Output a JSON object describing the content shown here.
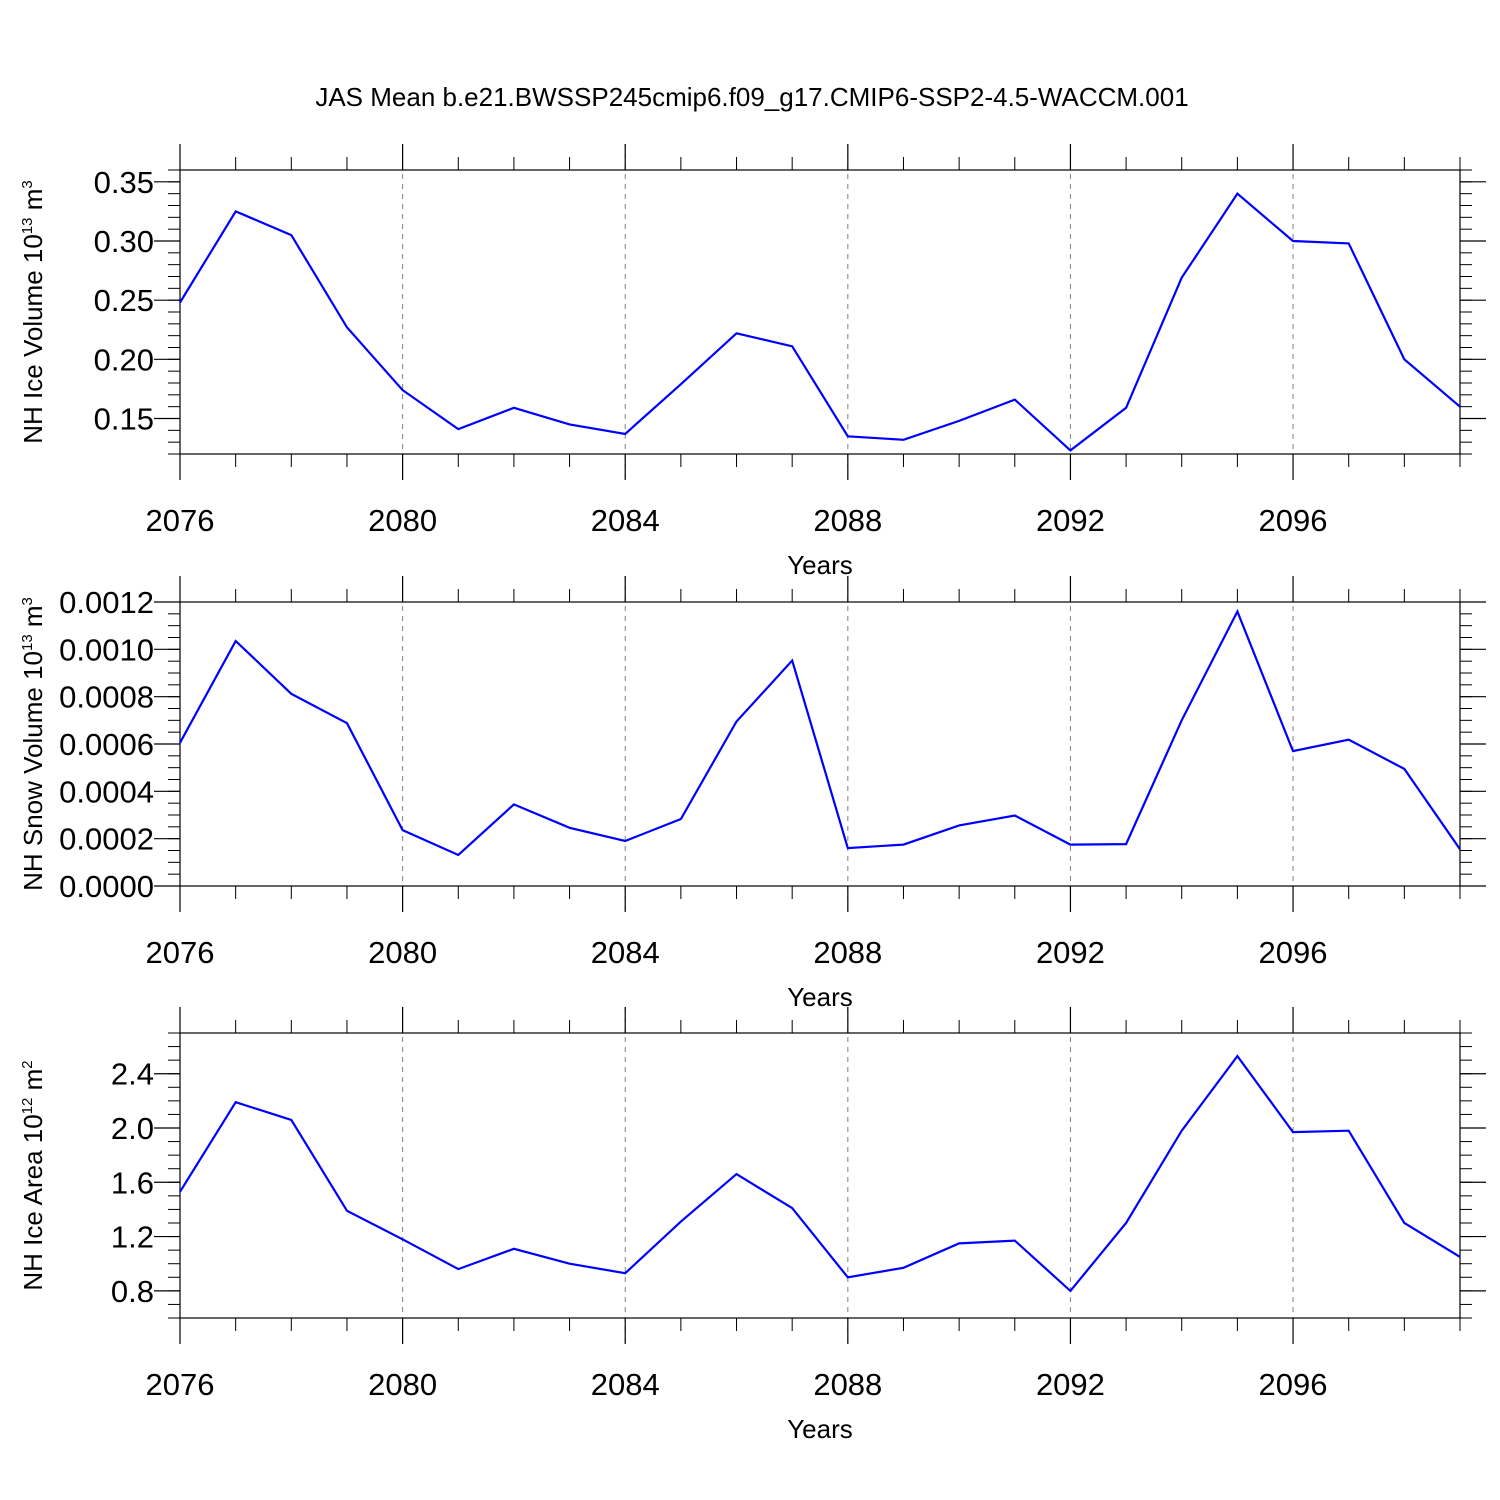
{
  "title": "JAS Mean b.e21.BWSSP245cmip6.f09_g17.CMIP6-SSP2-4.5-WACCM.001",
  "colors": {
    "line": "#0000ff",
    "grid": "#808080",
    "axis": "#000000"
  },
  "chart_data": [
    {
      "type": "line",
      "ylabel": "NH Ice Volume 10",
      "ylabel_sup": "13",
      "ylabel_unit": " m",
      "ylabel_unit_sup": "3",
      "xlabel": "Years",
      "xlim": [
        2076,
        2099
      ],
      "ylim": [
        0.12,
        0.36
      ],
      "yticks": [
        0.15,
        0.2,
        0.25,
        0.3,
        0.35
      ],
      "yticklabels": [
        "0.15",
        "0.20",
        "0.25",
        "0.30",
        "0.35"
      ],
      "yminor": 0.01,
      "xticks": [
        2076,
        2080,
        2084,
        2088,
        2092,
        2096
      ],
      "xticklabels": [
        "2076",
        "2080",
        "2084",
        "2088",
        "2092",
        "2096"
      ],
      "gridlines_x": [
        2080,
        2084,
        2088,
        2092,
        2096
      ],
      "series": [
        {
          "name": "NH Ice Volume",
          "x": [
            2076,
            2077,
            2078,
            2079,
            2080,
            2081,
            2082,
            2083,
            2084,
            2085,
            2086,
            2087,
            2088,
            2089,
            2090,
            2091,
            2092,
            2093,
            2094,
            2095,
            2096,
            2097,
            2098,
            2099
          ],
          "values": [
            0.248,
            0.325,
            0.305,
            0.227,
            0.174,
            0.141,
            0.159,
            0.145,
            0.137,
            0.179,
            0.222,
            0.211,
            0.135,
            0.132,
            0.148,
            0.166,
            0.123,
            0.159,
            0.269,
            0.34,
            0.3,
            0.298,
            0.2,
            0.16
          ]
        }
      ]
    },
    {
      "type": "line",
      "ylabel": "NH Snow Volume 10",
      "ylabel_sup": "13",
      "ylabel_unit": " m",
      "ylabel_unit_sup": "3",
      "xlabel": "Years",
      "xlim": [
        2076,
        2099
      ],
      "ylim": [
        0.0,
        0.0012
      ],
      "yticks": [
        0.0,
        0.0002,
        0.0004,
        0.0006,
        0.0008,
        0.001,
        0.0012
      ],
      "yticklabels": [
        "0.0000",
        "0.0002",
        "0.0004",
        "0.0006",
        "0.0008",
        "0.0010",
        "0.0012"
      ],
      "yminor": 5e-05,
      "xticks": [
        2076,
        2080,
        2084,
        2088,
        2092,
        2096
      ],
      "xticklabels": [
        "2076",
        "2080",
        "2084",
        "2088",
        "2092",
        "2096"
      ],
      "gridlines_x": [
        2080,
        2084,
        2088,
        2092,
        2096
      ],
      "series": [
        {
          "name": "NH Snow Volume",
          "x": [
            2076,
            2077,
            2078,
            2079,
            2080,
            2081,
            2082,
            2083,
            2084,
            2085,
            2086,
            2087,
            2088,
            2089,
            2090,
            2091,
            2092,
            2093,
            2094,
            2095,
            2096,
            2097,
            2098,
            2099
          ],
          "values": [
            0.000605,
            0.001035,
            0.000812,
            0.000688,
            0.000236,
            0.000131,
            0.000345,
            0.000246,
            0.00019,
            0.000283,
            0.000695,
            0.000953,
            0.00016,
            0.000175,
            0.000256,
            0.000298,
            0.000175,
            0.000177,
            0.0007,
            0.00116,
            0.00057,
            0.000618,
            0.000495,
            0.000155
          ]
        }
      ]
    },
    {
      "type": "line",
      "ylabel": "NH Ice Area 10",
      "ylabel_sup": "12",
      "ylabel_unit": " m",
      "ylabel_unit_sup": "2",
      "xlabel": "Years",
      "xlim": [
        2076,
        2099
      ],
      "ylim": [
        0.6,
        2.7
      ],
      "yticks": [
        0.8,
        1.2,
        1.6,
        2.0,
        2.4
      ],
      "yticklabels": [
        "0.8",
        "1.2",
        "1.6",
        "2.0",
        "2.4"
      ],
      "yminor": 0.1,
      "xticks": [
        2076,
        2080,
        2084,
        2088,
        2092,
        2096
      ],
      "xticklabels": [
        "2076",
        "2080",
        "2084",
        "2088",
        "2092",
        "2096"
      ],
      "gridlines_x": [
        2080,
        2084,
        2088,
        2092,
        2096
      ],
      "series": [
        {
          "name": "NH Ice Area",
          "x": [
            2076,
            2077,
            2078,
            2079,
            2080,
            2081,
            2082,
            2083,
            2084,
            2085,
            2086,
            2087,
            2088,
            2089,
            2090,
            2091,
            2092,
            2093,
            2094,
            2095,
            2096,
            2097,
            2098,
            2099
          ],
          "values": [
            1.53,
            2.19,
            2.06,
            1.39,
            1.18,
            0.96,
            1.11,
            1.0,
            0.93,
            1.31,
            1.66,
            1.41,
            0.9,
            0.97,
            1.15,
            1.17,
            0.8,
            1.3,
            1.98,
            2.53,
            1.97,
            1.98,
            1.3,
            1.05
          ]
        }
      ]
    }
  ]
}
